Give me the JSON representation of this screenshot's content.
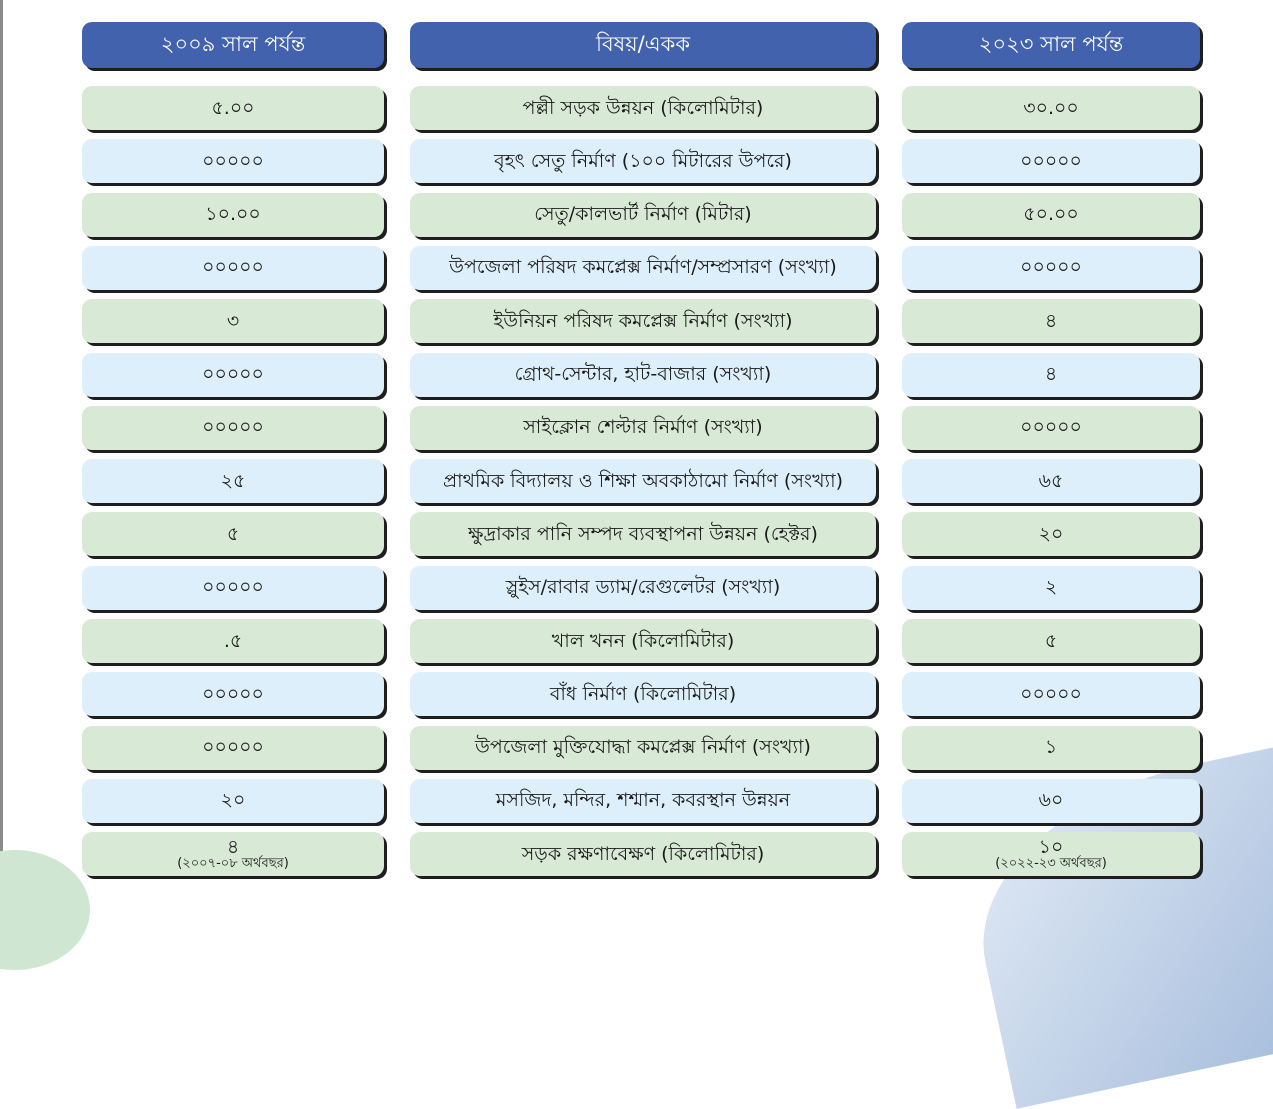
{
  "headers": {
    "left": "২০০৯ সাল পর্যন্ত",
    "middle": "বিষয়/একক",
    "right": "২০২৩ সাল পর্যন্ত"
  },
  "rows": [
    {
      "before": "৫.০০",
      "subject": "পল্লী সড়ক উন্নয়ন (কিলোমিটার)",
      "after": "৩০.০০"
    },
    {
      "before": "০০০০০",
      "subject": "বৃহৎ সেতু নির্মাণ (১০০ মিটারের উপরে)",
      "after": "০০০০০"
    },
    {
      "before": "১০.০০",
      "subject": "সেতু/কালভার্ট নির্মাণ (মিটার)",
      "after": "৫০.০০"
    },
    {
      "before": "০০০০০",
      "subject": "উপজেলা পরিষদ কমপ্লেক্স নির্মাণ/সম্প্রসারণ (সংখ্যা)",
      "after": "০০০০০"
    },
    {
      "before": "৩",
      "subject": "ইউনিয়ন পরিষদ কমপ্লেক্স নির্মাণ (সংখ্যা)",
      "after": "৪"
    },
    {
      "before": "০০০০০",
      "subject": "গ্রোথ-সেন্টার, হাট-বাজার (সংখ্যা)",
      "after": "৪"
    },
    {
      "before": "০০০০০",
      "subject": "সাইক্লোন শেল্টার নির্মাণ (সংখ্যা)",
      "after": "০০০০০"
    },
    {
      "before": "২৫",
      "subject": "প্রাথমিক বিদ্যালয় ও শিক্ষা অবকাঠামো নির্মাণ (সংখ্যা)",
      "after": "৬৫"
    },
    {
      "before": "৫",
      "subject": "ক্ষুদ্রাকার পানি সম্পদ ব্যবস্থাপনা উন্নয়ন (হেক্টর)",
      "after": "২০"
    },
    {
      "before": "০০০০০",
      "subject": "স্লুইস/রাবার ড্যাম/রেগুলেটর (সংখ্যা)",
      "after": "২"
    },
    {
      "before": ".৫",
      "subject": "খাল খনন (কিলোমিটার)",
      "after": "৫"
    },
    {
      "before": "০০০০০",
      "subject": "বাঁধ নির্মাণ (কিলোমিটার)",
      "after": "০০০০০"
    },
    {
      "before": "০০০০০",
      "subject": "উপজেলা মুক্তিযোদ্ধা কমপ্লেক্স নির্মাণ (সংখ্যা)",
      "after": "১"
    },
    {
      "before": "২০",
      "subject": "মসজিদ, মন্দির, শশ্মান, কবরস্থান উন্নয়ন",
      "after": "৬০"
    },
    {
      "before": "৪",
      "before_note": "(২০০৭-০৮ অর্থবছর)",
      "subject": "সড়ক রক্ষণাবেক্ষণ (কিলোমিটার)",
      "after": "১০",
      "after_note": "(২০২২-২৩ অর্থবছর)"
    }
  ],
  "colors": {
    "header": "#4262ae",
    "row_green": "#d8ead5",
    "row_blue": "#ddeffa"
  }
}
